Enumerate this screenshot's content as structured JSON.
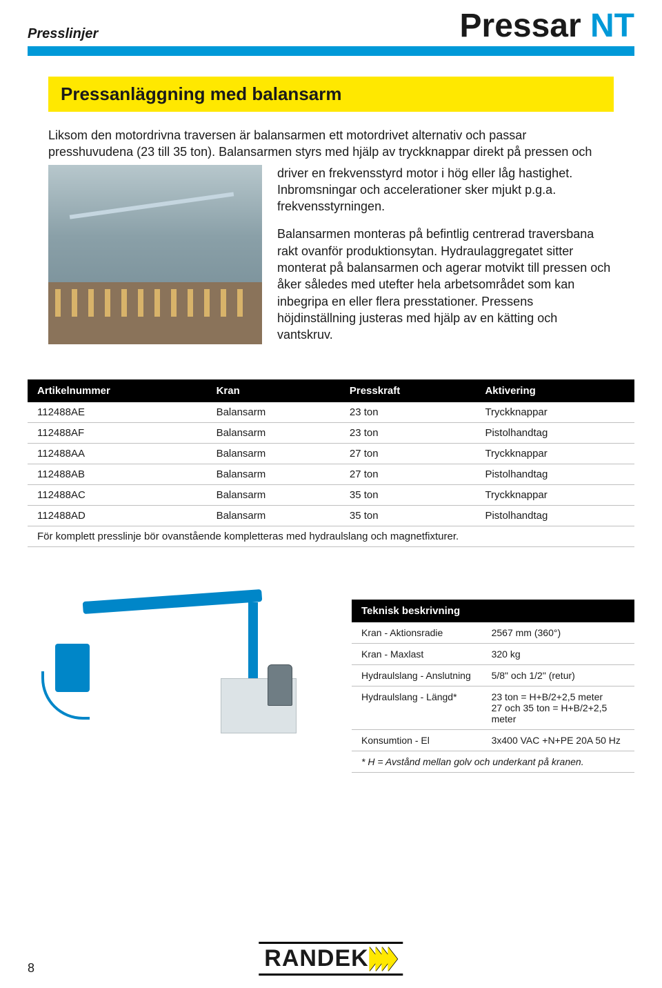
{
  "header": {
    "section_label": "Presslinjer",
    "title_main": "Pressar",
    "title_accent": "NT",
    "accent_color": "#0099d8"
  },
  "heading": "Pressanläggning med balansarm",
  "intro_para": "Liksom den motordrivna traversen är balansarmen ett motordrivet alternativ och passar presshuvudena (23 till 35 ton). Balansarmen styrs med hjälp av tryckknappar direkt på pressen och",
  "side_para_1": "driver en frekvensstyrd motor i hög eller låg hastighet. Inbromsningar och accelerationer sker mjukt p.g.a. frekvensstyrningen.",
  "side_para_2": "Balansarmen monteras på befintlig centrerad traversbana rakt ovanför produktionsytan. Hydraulaggregatet sitter monterat på balansarmen och agerar motvikt till pressen och åker således med utefter hela arbetsområdet som kan inbegripa en eller flera presstationer. Pressens höjdinställning justeras med hjälp av en kätting och vantskruv.",
  "table": {
    "columns": [
      "Artikelnummer",
      "Kran",
      "Presskraft",
      "Aktivering"
    ],
    "rows": [
      [
        "112488AE",
        "Balansarm",
        "23 ton",
        "Tryckknappar"
      ],
      [
        "112488AF",
        "Balansarm",
        "23 ton",
        "Pistolhandtag"
      ],
      [
        "112488AA",
        "Balansarm",
        "27 ton",
        "Tryckknappar"
      ],
      [
        "112488AB",
        "Balansarm",
        "27 ton",
        "Pistolhandtag"
      ],
      [
        "112488AC",
        "Balansarm",
        "35 ton",
        "Tryckknappar"
      ],
      [
        "112488AD",
        "Balansarm",
        "35 ton",
        "Pistolhandtag"
      ]
    ],
    "note": "För komplett presslinje bör ovanstående kompletteras med hydraulslang och magnetfixturer."
  },
  "tech": {
    "heading": "Teknisk beskrivning",
    "rows": [
      [
        "Kran - Aktionsradie",
        "2567 mm (360°)"
      ],
      [
        "Kran - Maxlast",
        "320 kg"
      ],
      [
        "Hydraulslang - Anslutning",
        "5/8\" och 1/2\" (retur)"
      ],
      [
        "Hydraulslang - Längd*",
        "23 ton = H+B/2+2,5 meter\n27 och 35 ton = H+B/2+2,5 meter"
      ],
      [
        "Konsumtion - El",
        "3x400 VAC +N+PE 20A 50 Hz"
      ]
    ],
    "footnote": "* H = Avstånd mellan golv och underkant på kranen."
  },
  "footer": {
    "page_number": "8",
    "logo_text": "RANDEK",
    "logo_chevron_color": "#ffe800"
  }
}
